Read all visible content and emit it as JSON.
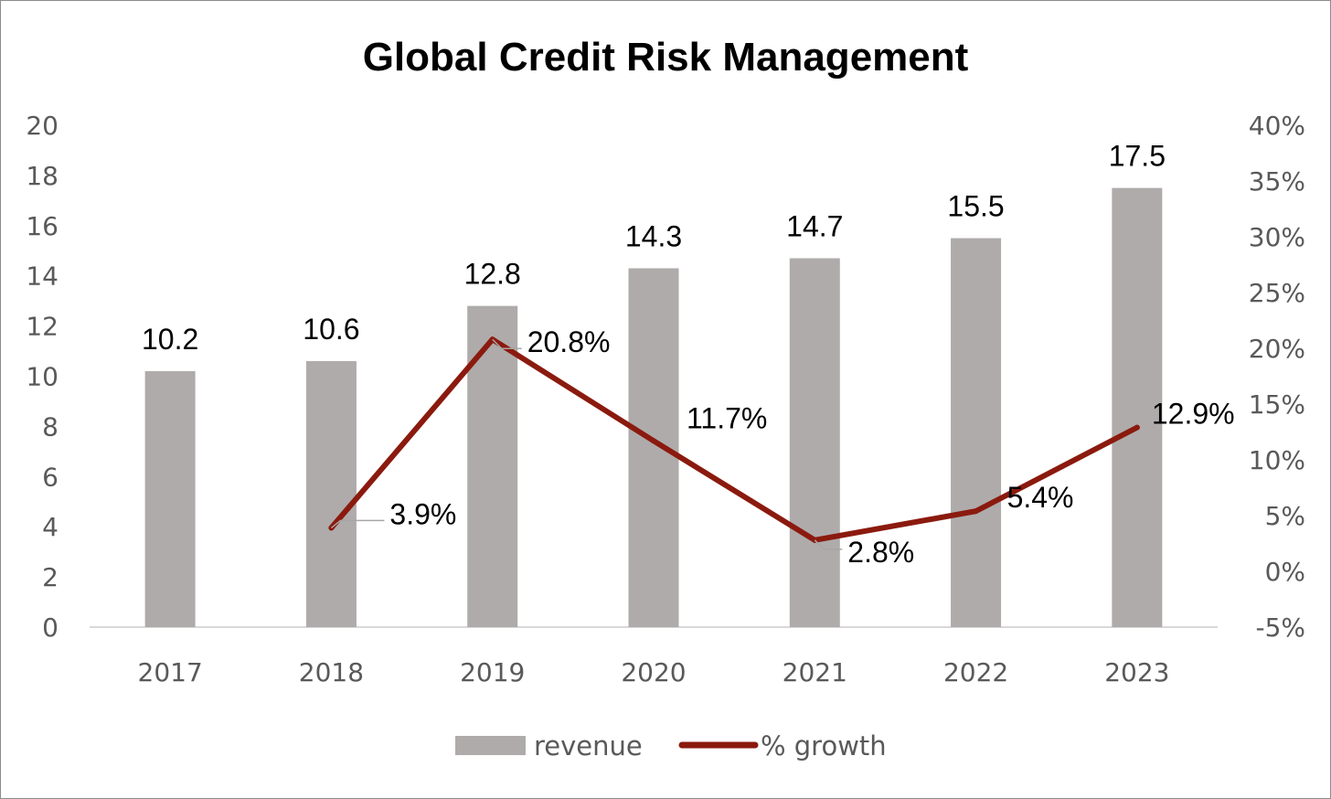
{
  "chart_data": {
    "type": "bar",
    "title": "Global Credit Risk Management",
    "categories": [
      "2017",
      "2018",
      "2019",
      "2020",
      "2021",
      "2022",
      "2023"
    ],
    "series": [
      {
        "name": "revenue",
        "type": "bar",
        "axis": "left",
        "values": [
          10.2,
          10.6,
          12.8,
          14.3,
          14.7,
          15.5,
          17.5
        ],
        "labels": [
          "10.2",
          "10.6",
          "12.8",
          "14.3",
          "14.7",
          "15.5",
          "17.5"
        ],
        "color": "#afabab"
      },
      {
        "name": "% growth",
        "type": "line",
        "axis": "right",
        "values": [
          null,
          3.9,
          20.8,
          11.7,
          2.8,
          5.4,
          12.9
        ],
        "labels": [
          "",
          "3.9%",
          "20.8%",
          "11.7%",
          "2.8%",
          "5.4%",
          "12.9%"
        ],
        "color": "#8b1a0e"
      }
    ],
    "y_left": {
      "range": [
        0,
        20
      ],
      "ticks": [
        "0",
        "2",
        "4",
        "6",
        "8",
        "10",
        "12",
        "14",
        "16",
        "18",
        "20"
      ]
    },
    "y_right": {
      "range": [
        -5,
        40
      ],
      "ticks": [
        "-5%",
        "0%",
        "5%",
        "10%",
        "15%",
        "20%",
        "25%",
        "30%",
        "35%",
        "40%"
      ]
    },
    "grid": false,
    "legend": "bottom",
    "xlabel": "",
    "ylabel": ""
  }
}
